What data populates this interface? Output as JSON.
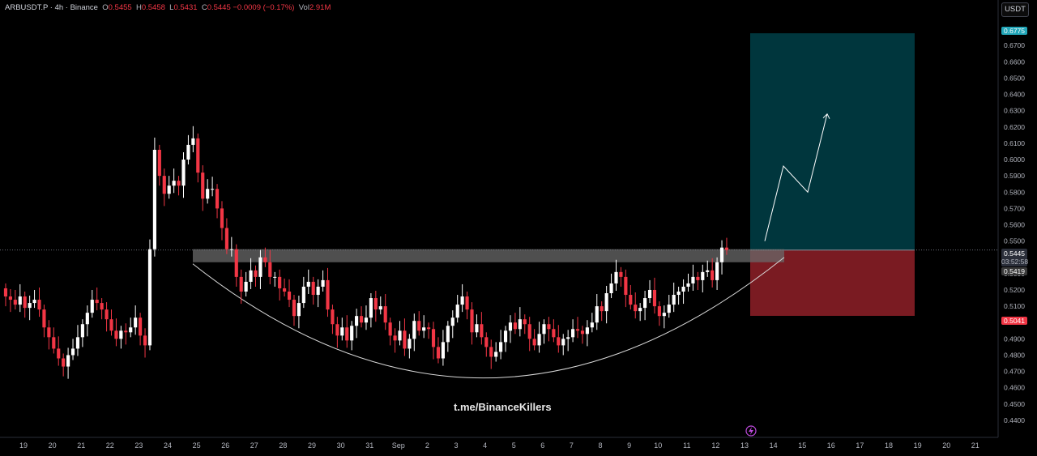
{
  "header": {
    "symbol": "ARBUSDT.P · 4h · Binance",
    "o_label": "O",
    "o_value": "0.5455",
    "h_label": "H",
    "h_value": "0.5458",
    "l_label": "L",
    "l_value": "0.5431",
    "c_label": "C",
    "c_value": "0.5445 −0.0009 (−0.17%)",
    "vol_label": "Vol",
    "vol_value": "2.91M"
  },
  "currency_button": "USDT",
  "watermark": "t.me/BinanceKillers",
  "tags": {
    "target": "0.6775",
    "price": "0.5445",
    "countdown": "03:52:58",
    "zone": "0.5419",
    "stop": "0.5041"
  },
  "colors": {
    "background": "#000000",
    "up_candle": "#ffffff",
    "down_candle": "#f23645",
    "profit_zone": "#00363d",
    "loss_zone": "#7a1b22",
    "resistance_zone": "#6a6a6a"
  },
  "icons": [
    "lightning-icon"
  ],
  "chart_data": {
    "type": "candlestick",
    "title": "",
    "xlabel": "",
    "ylabel": "",
    "ylim": [
      0.436,
      0.684
    ],
    "y_ticks": [
      0.44,
      0.45,
      0.46,
      0.47,
      0.48,
      0.49,
      0.5,
      0.51,
      0.52,
      0.53,
      0.54,
      0.55,
      0.56,
      0.57,
      0.58,
      0.59,
      0.6,
      0.61,
      0.62,
      0.63,
      0.64,
      0.65,
      0.66,
      0.67,
      0.68
    ],
    "y_tick_labels": [
      "0.4400",
      "0.4500",
      "0.4600",
      "0.4700",
      "0.4800",
      "0.4900",
      "0.5000",
      "0.5100",
      "0.5200",
      "0.5300",
      "0.5400",
      "0.5500",
      "0.5600",
      "0.5700",
      "0.5800",
      "0.5900",
      "0.6000",
      "0.6100",
      "0.6200",
      "0.6300",
      "0.6400",
      "0.6500",
      "0.6600",
      "0.6700",
      "0.6800"
    ],
    "x_labels": [
      "19",
      "20",
      "21",
      "22",
      "23",
      "24",
      "25",
      "26",
      "27",
      "28",
      "29",
      "30",
      "31",
      "Sep",
      "2",
      "3",
      "4",
      "5",
      "6",
      "7",
      "8",
      "9",
      "10",
      "11",
      "12",
      "13",
      "14",
      "15",
      "16",
      "17",
      "18",
      "19",
      "20",
      "21"
    ],
    "x_label_day_index": [
      0,
      1,
      2,
      3,
      4,
      5,
      6,
      7,
      8,
      9,
      10,
      11,
      12,
      13,
      14,
      15,
      16,
      17,
      18,
      19,
      20,
      21,
      22,
      23,
      24,
      25,
      26,
      27,
      28,
      29,
      30,
      31,
      32,
      33
    ],
    "candles_per_day": 6,
    "closes": [
      0.516,
      0.514,
      0.511,
      0.516,
      0.509,
      0.512,
      0.514,
      0.508,
      0.497,
      0.491,
      0.484,
      0.478,
      0.473,
      0.48,
      0.484,
      0.491,
      0.499,
      0.506,
      0.514,
      0.512,
      0.508,
      0.502,
      0.495,
      0.49,
      0.495,
      0.494,
      0.497,
      0.503,
      0.492,
      0.486,
      0.545,
      0.606,
      0.59,
      0.579,
      0.584,
      0.587,
      0.584,
      0.6,
      0.609,
      0.613,
      0.592,
      0.576,
      0.582,
      0.582,
      0.57,
      0.558,
      0.545,
      0.545,
      0.528,
      0.519,
      0.525,
      0.532,
      0.528,
      0.54,
      0.537,
      0.528,
      0.528,
      0.521,
      0.519,
      0.514,
      0.504,
      0.512,
      0.522,
      0.525,
      0.517,
      0.522,
      0.526,
      0.508,
      0.499,
      0.492,
      0.497,
      0.489,
      0.498,
      0.504,
      0.5,
      0.503,
      0.515,
      0.508,
      0.51,
      0.5,
      0.492,
      0.489,
      0.495,
      0.484,
      0.49,
      0.501,
      0.495,
      0.497,
      0.496,
      0.485,
      0.478,
      0.488,
      0.498,
      0.503,
      0.511,
      0.516,
      0.508,
      0.494,
      0.499,
      0.491,
      0.485,
      0.479,
      0.482,
      0.488,
      0.495,
      0.5,
      0.496,
      0.502,
      0.499,
      0.49,
      0.486,
      0.493,
      0.499,
      0.496,
      0.491,
      0.486,
      0.49,
      0.491,
      0.496,
      0.495,
      0.493,
      0.497,
      0.5,
      0.51,
      0.507,
      0.518,
      0.524,
      0.531,
      0.528,
      0.517,
      0.511,
      0.507,
      0.509,
      0.515,
      0.52,
      0.51,
      0.504,
      0.506,
      0.511,
      0.517,
      0.519,
      0.522,
      0.524,
      0.528,
      0.526,
      0.531,
      0.532,
      0.526,
      0.537,
      0.546,
      0.5445
    ],
    "candle_range_start_close": 0.521,
    "resistance_zone": [
      0.537,
      0.545
    ],
    "position": {
      "entry": 0.5445,
      "target": 0.6775,
      "stop": 0.5041
    },
    "projection_path": [
      0.55,
      0.596,
      0.58,
      0.628
    ],
    "rounded_bottom_curve": {
      "from": 0.536,
      "low": 0.466,
      "to": 0.54
    }
  }
}
